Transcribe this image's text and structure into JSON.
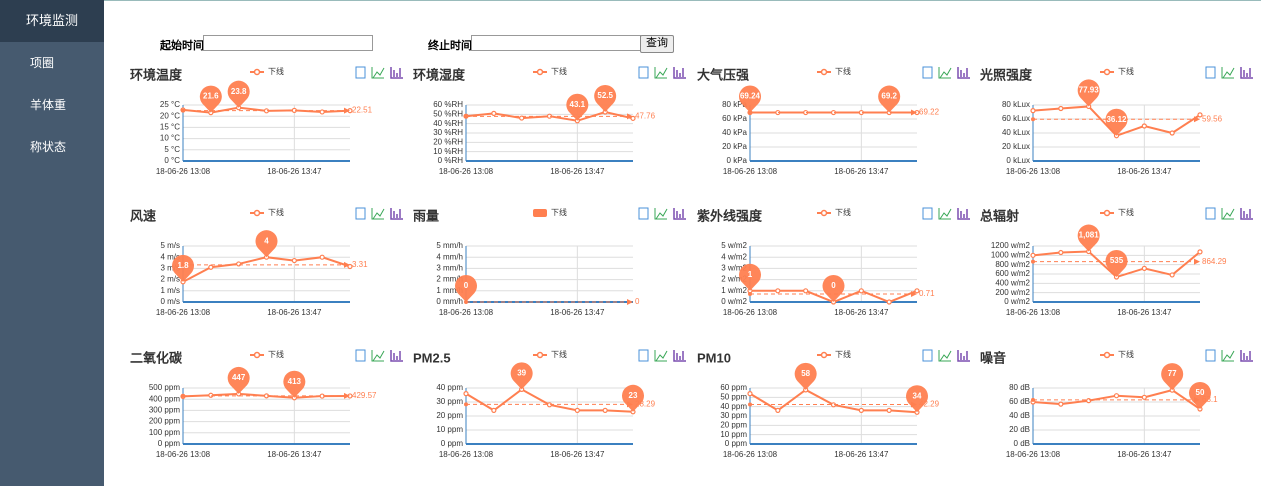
{
  "sidebar": {
    "items": [
      "环境监测",
      "项圈",
      "羊体重",
      "称状态"
    ]
  },
  "form": {
    "start_label": "起始时间:",
    "end_label": "终止时间:",
    "button": "查询"
  },
  "chart_data": [
    {
      "type": "line",
      "title": "环境温度",
      "categories": [
        "18-06-26 13:08",
        null,
        null,
        null,
        "18-06-26 13:47",
        null,
        null
      ],
      "series": [
        {
          "name": "下线",
          "color": "#ff7f50",
          "values": [
            22.8,
            21.6,
            23.8,
            22.4,
            22.6,
            21.9,
            22.5
          ],
          "average": 22.51,
          "mark_points": [
            2,
            1
          ]
        }
      ],
      "ylim": [
        0,
        25
      ],
      "yticks": [
        {
          "value": 0,
          "label": "0 °C"
        },
        {
          "value": 5,
          "label": "5 °C"
        },
        {
          "value": 10,
          "label": "10 °C"
        },
        {
          "value": 15,
          "label": "15 °C"
        },
        {
          "value": 20,
          "label": "20 °C"
        },
        {
          "value": 25,
          "label": "25 °C"
        }
      ],
      "grid": true
    },
    {
      "type": "line",
      "title": "环境湿度",
      "categories": [
        "18-06-26 13:08",
        null,
        null,
        null,
        "18-06-26 13:47",
        null,
        null
      ],
      "series": [
        {
          "name": "下线",
          "color": "#ff7f50",
          "values": [
            48,
            51,
            46,
            48,
            43.1,
            52.5,
            45.7
          ],
          "average": 47.76,
          "mark_points": [
            5,
            4
          ]
        }
      ],
      "ylim": [
        0,
        60
      ],
      "yticks": [
        {
          "value": 0,
          "label": "0 %RH"
        },
        {
          "value": 10,
          "label": "10 %RH"
        },
        {
          "value": 20,
          "label": "20 %RH"
        },
        {
          "value": 30,
          "label": "30 %RH"
        },
        {
          "value": 40,
          "label": "40 %RH"
        },
        {
          "value": 50,
          "label": "50 %RH"
        },
        {
          "value": 60,
          "label": "60 %RH"
        }
      ],
      "grid": true
    },
    {
      "type": "line",
      "title": "大气压强",
      "categories": [
        "18-06-26 13:08",
        null,
        null,
        null,
        "18-06-26 13:47",
        null,
        null
      ],
      "series": [
        {
          "name": "下线",
          "color": "#ff7f50",
          "values": [
            69.24,
            69.22,
            69.22,
            69.22,
            69.22,
            69.2,
            69.22
          ],
          "average": 69.22,
          "mark_points": [
            0,
            5
          ]
        }
      ],
      "ylim": [
        0,
        80
      ],
      "yticks": [
        {
          "value": 0,
          "label": "0 kPa"
        },
        {
          "value": 20,
          "label": "20 kPa"
        },
        {
          "value": 40,
          "label": "40 kPa"
        },
        {
          "value": 60,
          "label": "60 kPa"
        },
        {
          "value": 80,
          "label": "80 kPa"
        }
      ],
      "grid": true
    },
    {
      "type": "line",
      "title": "光照强度",
      "categories": [
        "18-06-26 13:08",
        null,
        null,
        null,
        "18-06-26 13:47",
        null,
        null
      ],
      "series": [
        {
          "name": "下线",
          "color": "#ff7f50",
          "values": [
            72,
            75,
            77.93,
            36.12,
            50,
            40,
            65.87
          ],
          "average": 59.56,
          "mark_points": [
            2,
            3
          ]
        }
      ],
      "ylim": [
        0,
        80
      ],
      "yticks": [
        {
          "value": 0,
          "label": "0 kLux"
        },
        {
          "value": 20,
          "label": "20 kLux"
        },
        {
          "value": 40,
          "label": "40 kLux"
        },
        {
          "value": 60,
          "label": "60 kLux"
        },
        {
          "value": 80,
          "label": "80 kLux"
        }
      ],
      "grid": true
    },
    {
      "type": "line",
      "title": "风速",
      "categories": [
        "18-06-26 13:08",
        null,
        null,
        null,
        "18-06-26 13:47",
        null,
        null
      ],
      "series": [
        {
          "name": "下线",
          "color": "#ff7f50",
          "values": [
            1.8,
            3.1,
            3.4,
            4,
            3.7,
            4,
            3.17
          ],
          "average": 3.31,
          "mark_points": [
            3,
            0
          ]
        }
      ],
      "ylim": [
        0,
        5
      ],
      "yticks": [
        {
          "value": 0,
          "label": "0 m/s"
        },
        {
          "value": 1,
          "label": "1 m/s"
        },
        {
          "value": 2,
          "label": "2 m/s"
        },
        {
          "value": 3,
          "label": "3 m/s"
        },
        {
          "value": 4,
          "label": "4 m/s"
        },
        {
          "value": 5,
          "label": "5 m/s"
        }
      ],
      "grid": true
    },
    {
      "type": "bar",
      "title": "雨量",
      "categories": [
        "18-06-26 13:08",
        null,
        null,
        null,
        "18-06-26 13:47",
        null,
        null
      ],
      "series": [
        {
          "name": "下线",
          "color": "#ff7f50",
          "values": [
            0,
            0,
            0,
            0,
            0,
            0,
            0
          ],
          "average": 0,
          "mark_points": [
            0
          ]
        }
      ],
      "ylim": [
        0,
        5
      ],
      "yticks": [
        {
          "value": 0,
          "label": "0 mm/h"
        },
        {
          "value": 1,
          "label": "1 mm/h"
        },
        {
          "value": 2,
          "label": "2 mm/h"
        },
        {
          "value": 3,
          "label": "3 mm/h"
        },
        {
          "value": 4,
          "label": "4 mm/h"
        },
        {
          "value": 5,
          "label": "5 mm/h"
        }
      ],
      "grid": true
    },
    {
      "type": "line",
      "title": "紫外线强度",
      "categories": [
        "18-06-26 13:08",
        null,
        null,
        null,
        "18-06-26 13:47",
        null,
        null
      ],
      "series": [
        {
          "name": "下线",
          "color": "#ff7f50",
          "values": [
            1,
            1,
            1,
            0,
            1,
            0,
            1
          ],
          "average": 0.71,
          "mark_points": [
            0,
            3
          ]
        }
      ],
      "ylim": [
        0,
        5
      ],
      "yticks": [
        {
          "value": 0,
          "label": "0 w/m2"
        },
        {
          "value": 1,
          "label": "1 w/m2"
        },
        {
          "value": 2,
          "label": "2 w/m2"
        },
        {
          "value": 3,
          "label": "3 w/m2"
        },
        {
          "value": 4,
          "label": "4 w/m2"
        },
        {
          "value": 5,
          "label": "5 w/m2"
        }
      ],
      "grid": true
    },
    {
      "type": "line",
      "title": "总辐射",
      "categories": [
        "18-06-26 13:08",
        null,
        null,
        null,
        "18-06-26 13:47",
        null,
        null
      ],
      "series": [
        {
          "name": "下线",
          "color": "#ff7f50",
          "values": [
            1000,
            1060,
            1081,
            535,
            720,
            580,
            1074
          ],
          "value_labels": [
            null,
            null,
            "1,081",
            null,
            null,
            null,
            null
          ],
          "average": 864.29,
          "mark_points": [
            2,
            3
          ]
        }
      ],
      "ylim": [
        0,
        1200
      ],
      "yticks": [
        {
          "value": 0,
          "label": "0 w/m2"
        },
        {
          "value": 200,
          "label": "200 w/m2"
        },
        {
          "value": 400,
          "label": "400 w/m2"
        },
        {
          "value": 600,
          "label": "600 w/m2"
        },
        {
          "value": 800,
          "label": "800 w/m2"
        },
        {
          "value": 1000,
          "label": "1000 w/m2"
        },
        {
          "value": 1200,
          "label": "1200 w/m2"
        }
      ],
      "grid": true
    },
    {
      "type": "line",
      "title": "二氧化碳",
      "categories": [
        "18-06-26 13:08",
        null,
        null,
        null,
        "18-06-26 13:47",
        null,
        null
      ],
      "series": [
        {
          "name": "下线",
          "color": "#ff7f50",
          "values": [
            425,
            435,
            447,
            430,
            413,
            428,
            429
          ],
          "average": 429.57,
          "mark_points": [
            2,
            4
          ]
        }
      ],
      "ylim": [
        0,
        500
      ],
      "yticks": [
        {
          "value": 0,
          "label": "0 ppm"
        },
        {
          "value": 100,
          "label": "100 ppm"
        },
        {
          "value": 200,
          "label": "200 ppm"
        },
        {
          "value": 300,
          "label": "300 ppm"
        },
        {
          "value": 400,
          "label": "400 ppm"
        },
        {
          "value": 500,
          "label": "500 ppm"
        }
      ],
      "grid": true
    },
    {
      "type": "line",
      "title": "PM2.5",
      "categories": [
        "18-06-26 13:08",
        null,
        null,
        null,
        "18-06-26 13:47",
        null,
        null
      ],
      "series": [
        {
          "name": "下线",
          "color": "#ff7f50",
          "values": [
            36,
            24,
            39,
            28,
            24,
            24,
            23
          ],
          "average": 28.29,
          "mark_points": [
            2,
            6
          ]
        }
      ],
      "ylim": [
        0,
        40
      ],
      "yticks": [
        {
          "value": 0,
          "label": "0 ppm"
        },
        {
          "value": 10,
          "label": "10 ppm"
        },
        {
          "value": 20,
          "label": "20 ppm"
        },
        {
          "value": 30,
          "label": "30 ppm"
        },
        {
          "value": 40,
          "label": "40 ppm"
        }
      ],
      "grid": true
    },
    {
      "type": "line",
      "title": "PM10",
      "categories": [
        "18-06-26 13:08",
        null,
        null,
        null,
        "18-06-26 13:47",
        null,
        null
      ],
      "series": [
        {
          "name": "下线",
          "color": "#ff7f50",
          "values": [
            54,
            36,
            58,
            42,
            36,
            36,
            34
          ],
          "average": 42.29,
          "mark_points": [
            2,
            6
          ]
        }
      ],
      "ylim": [
        0,
        60
      ],
      "yticks": [
        {
          "value": 0,
          "label": "0 ppm"
        },
        {
          "value": 10,
          "label": "10 ppm"
        },
        {
          "value": 20,
          "label": "20 ppm"
        },
        {
          "value": 30,
          "label": "30 ppm"
        },
        {
          "value": 40,
          "label": "40 ppm"
        },
        {
          "value": 50,
          "label": "50 ppm"
        },
        {
          "value": 60,
          "label": "60 ppm"
        }
      ],
      "grid": true
    },
    {
      "type": "line",
      "title": "噪音",
      "categories": [
        "18-06-26 13:08",
        null,
        null,
        null,
        "18-06-26 13:47",
        null,
        null
      ],
      "series": [
        {
          "name": "下线",
          "color": "#ff7f50",
          "values": [
            60,
            57,
            62,
            69,
            66.7,
            77,
            50
          ],
          "average": 63.1,
          "mark_points": [
            5,
            6
          ]
        }
      ],
      "ylim": [
        0,
        80
      ],
      "yticks": [
        {
          "value": 0,
          "label": "0 dB"
        },
        {
          "value": 20,
          "label": "20 dB"
        },
        {
          "value": 40,
          "label": "40 dB"
        },
        {
          "value": 60,
          "label": "60 dB"
        },
        {
          "value": 80,
          "label": "80 dB"
        }
      ],
      "grid": true
    }
  ]
}
